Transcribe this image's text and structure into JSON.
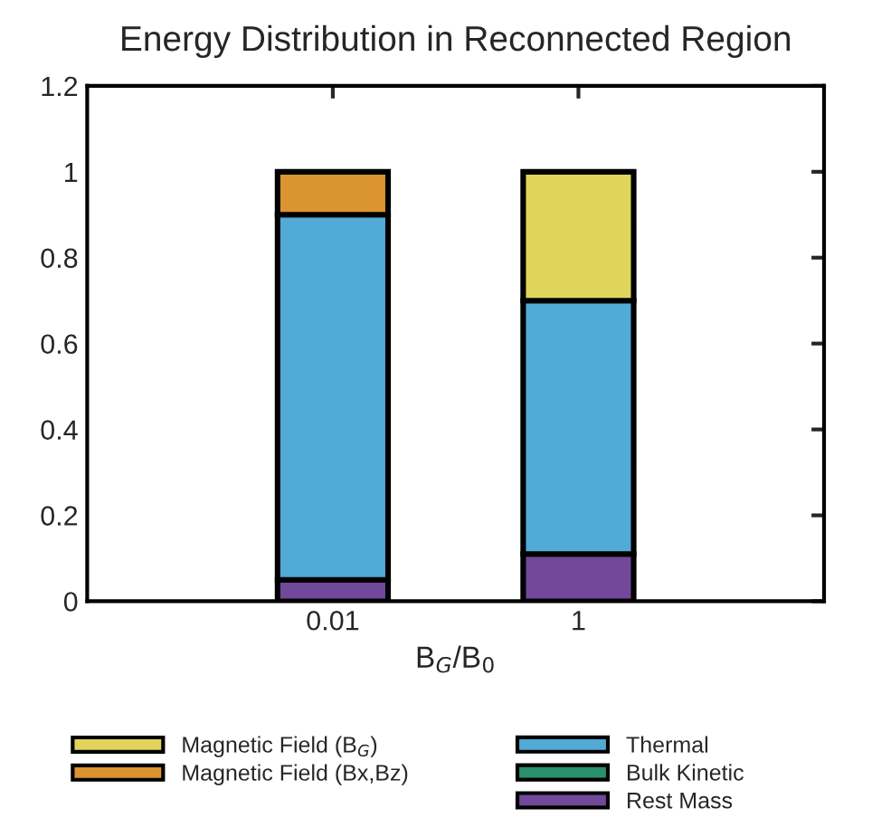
{
  "chart_data": {
    "type": "bar",
    "title": "Energy Distribution in Reconnected Region",
    "xlabel": "B$_{G}$/B$_{0}$",
    "stacked": true,
    "categories": [
      "0.01",
      "1"
    ],
    "series": [
      {
        "name": "Rest Mass",
        "color": "#71489a",
        "values": [
          0.05,
          0.11
        ]
      },
      {
        "name": "Bulk Kinetic",
        "color": "#2a8f6e",
        "values": [
          null,
          null
        ]
      },
      {
        "name": "Thermal",
        "color": "#52aad6",
        "values": [
          0.85,
          0.59
        ]
      },
      {
        "name": "Magnetic Field (Bx,Bz)",
        "color": "#da9430",
        "values": [
          0.1,
          null
        ]
      },
      {
        "name": "Magnetic Field (B$_{G}$)",
        "color": "#e1d45a",
        "values": [
          null,
          0.3
        ]
      }
    ],
    "ylim": [
      0,
      1.2
    ],
    "yticks": [
      0,
      0.2,
      0.4,
      0.6,
      0.8,
      1,
      1.2
    ],
    "legend": "bottom",
    "grid": false
  }
}
